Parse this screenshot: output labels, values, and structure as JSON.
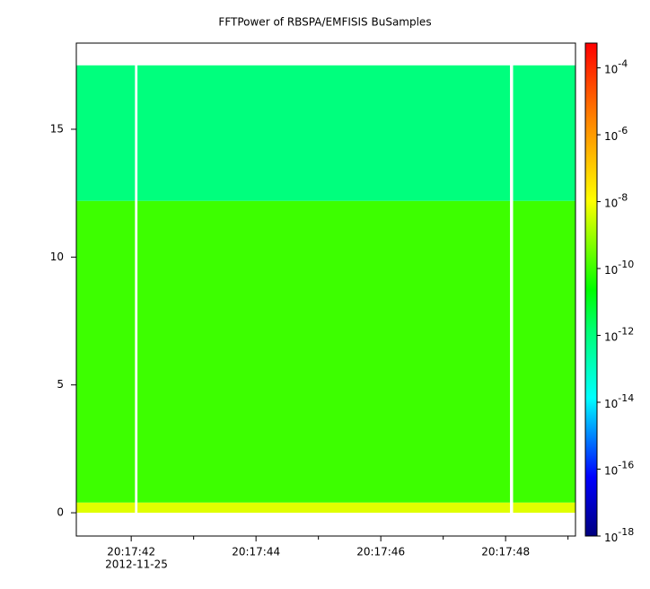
{
  "chart_data": {
    "type": "spectrogram",
    "title": "FFTPower of RBSPA/EMFISIS  BuSamples",
    "xlim": [
      "2012-11-25T20:17:41.12Z",
      "2012-11-25T20:17:49.12Z"
    ],
    "xticks": [
      {
        "value": "2012-11-25T20:17:42Z",
        "label": "20:17:42"
      },
      {
        "value": "2012-11-25T20:17:44Z",
        "label": "20:17:44"
      },
      {
        "value": "2012-11-25T20:17:46Z",
        "label": "20:17:46"
      },
      {
        "value": "2012-11-25T20:17:48Z",
        "label": "20:17:48"
      }
    ],
    "x_minor_ticks": [
      "2012-11-25T20:17:43Z",
      "2012-11-25T20:17:45Z",
      "2012-11-25T20:17:47Z",
      "2012-11-25T20:17:49Z"
    ],
    "x_date_label": "2012-11-25",
    "ylim": [
      -0.91,
      18.37
    ],
    "yticks": [
      0,
      5,
      10,
      15
    ],
    "x_bins": [
      [
        "2012-11-25T20:17:41.12Z",
        "2012-11-25T20:17:42.06Z"
      ],
      [
        "2012-11-25T20:17:42.10Z",
        "2012-11-25T20:17:48.07Z"
      ],
      [
        "2012-11-25T20:17:48.12Z",
        "2012-11-25T20:17:49.12Z"
      ]
    ],
    "y_bins": [
      0,
      0.4,
      12.2,
      17.5
    ],
    "values": [
      [
        5e-09,
        1e-10,
        1e-12
      ],
      [
        5e-09,
        1e-10,
        1e-12
      ],
      [
        5e-09,
        1e-10,
        1e-12
      ]
    ],
    "zlim": [
      1e-18,
      0.00055
    ],
    "zscale": "log",
    "zticks": [
      {
        "value": 1e-18,
        "label": "10",
        "exponent": "-18"
      },
      {
        "value": 1e-16,
        "label": "10",
        "exponent": "-16"
      },
      {
        "value": 1e-14,
        "label": "10",
        "exponent": "-14"
      },
      {
        "value": 1e-12,
        "label": "10",
        "exponent": "-12"
      },
      {
        "value": 1e-10,
        "label": "10",
        "exponent": "-10"
      },
      {
        "value": 1e-08,
        "label": "10",
        "exponent": "-8"
      },
      {
        "value": 1e-06,
        "label": "10",
        "exponent": "-6"
      },
      {
        "value": 0.0001,
        "label": "10",
        "exponent": "-4"
      }
    ],
    "colormap": [
      {
        "pos": 0,
        "color": "#00007f"
      },
      {
        "pos": 0.12,
        "color": "#0000ff"
      },
      {
        "pos": 0.28,
        "color": "#00ffff"
      },
      {
        "pos": 0.42,
        "color": "#00ff70"
      },
      {
        "pos": 0.5,
        "color": "#00ff00"
      },
      {
        "pos": 0.68,
        "color": "#ffff00"
      },
      {
        "pos": 0.85,
        "color": "#ff8000"
      },
      {
        "pos": 1,
        "color": "#ff0000"
      }
    ]
  }
}
